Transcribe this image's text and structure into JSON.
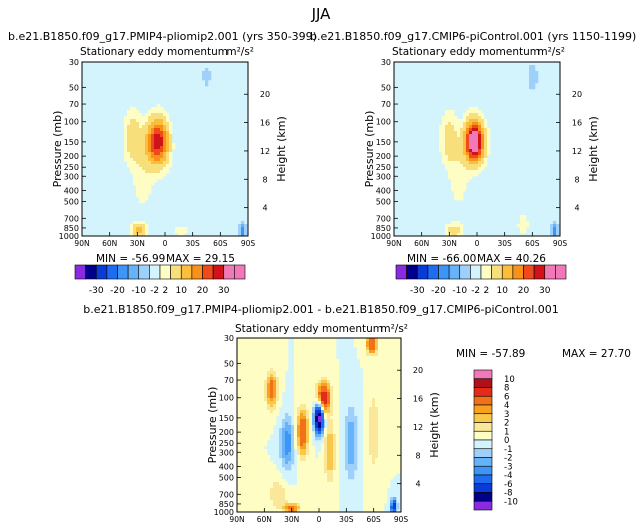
{
  "figure_title": "JJA",
  "colors": {
    "bg_field": "#d3f4fd",
    "contour_line": "#000000"
  },
  "chart_data": [
    {
      "type": "heatmap",
      "id": "panel_a",
      "case_title": "b.e21.B1850.f09_g17.PMIP4-pliomip2.001  (yrs 350-399)",
      "plot_title": "Stationary eddy momentum",
      "units": "m²/s²",
      "xlabel": "",
      "ylabel": "Pressure (mb)",
      "ylabel_right": "Height (km)",
      "x_ticks": [
        "90N",
        "60N",
        "30N",
        "0",
        "30S",
        "60S",
        "90S"
      ],
      "y_ticks": [
        "30",
        "50",
        "70",
        "100",
        "150",
        "200",
        "250",
        "300",
        "400",
        "500",
        "700",
        "850",
        "1000"
      ],
      "right_ticks": [
        "20",
        "16",
        "12",
        "8",
        "4"
      ],
      "min_text": "MIN = -56.99",
      "max_text": "MAX =  29.15",
      "features": [
        {
          "lat": 8,
          "p": 150,
          "value": 29,
          "spread_lat": 12,
          "spread_p": 0.45
        },
        {
          "lat": 35,
          "p": 140,
          "value": 9,
          "spread_lat": 9,
          "spread_p": 0.5
        },
        {
          "lat": 24,
          "p": 320,
          "value": 4,
          "spread_lat": 10,
          "spread_p": 0.6
        },
        {
          "lat": 28,
          "p": 900,
          "value": 12,
          "spread_lat": 8,
          "spread_p": 0.15
        },
        {
          "lat": -18,
          "p": 900,
          "value": 3,
          "spread_lat": 10,
          "spread_p": 0.15
        },
        {
          "lat": -10,
          "p": 120,
          "value": -2,
          "spread_lat": 7,
          "spread_p": 0.6
        },
        {
          "lat": -45,
          "p": 40,
          "value": -3,
          "spread_lat": 6,
          "spread_p": 0.3
        },
        {
          "lat": -25,
          "p": 350,
          "value": -2,
          "spread_lat": 6,
          "spread_p": 0.5
        },
        {
          "lat": -84,
          "p": 900,
          "value": -15,
          "spread_lat": 3,
          "spread_p": 0.15
        }
      ]
    },
    {
      "type": "heatmap",
      "id": "panel_b",
      "case_title": "b.e21.B1850.f09_g17.CMIP6-piControl.001  (yrs 1150-1199)",
      "plot_title": "Stationary eddy momentum",
      "units": "m²/s²",
      "xlabel": "",
      "ylabel": "Pressure (mb)",
      "ylabel_right": "Height (km)",
      "x_ticks": [
        "90N",
        "60N",
        "30N",
        "0",
        "30S",
        "60S",
        "90S"
      ],
      "y_ticks": [
        "30",
        "50",
        "70",
        "100",
        "150",
        "200",
        "250",
        "300",
        "400",
        "500",
        "700",
        "850",
        "1000"
      ],
      "right_ticks": [
        "20",
        "16",
        "12",
        "8",
        "4"
      ],
      "min_text": "MIN = -66.00",
      "max_text": "MAX =  40.26",
      "features": [
        {
          "lat": 3,
          "p": 150,
          "value": 40,
          "spread_lat": 10,
          "spread_p": 0.4
        },
        {
          "lat": 30,
          "p": 140,
          "value": 8,
          "spread_lat": 9,
          "spread_p": 0.5
        },
        {
          "lat": 20,
          "p": 300,
          "value": 4,
          "spread_lat": 10,
          "spread_p": 0.6
        },
        {
          "lat": 25,
          "p": 900,
          "value": 8,
          "spread_lat": 9,
          "spread_p": 0.15
        },
        {
          "lat": -20,
          "p": 150,
          "value": -2,
          "spread_lat": 5,
          "spread_p": 0.6
        },
        {
          "lat": -60,
          "p": 40,
          "value": -4,
          "spread_lat": 6,
          "spread_p": 0.3
        },
        {
          "lat": -45,
          "p": 200,
          "value": 2,
          "spread_lat": 8,
          "spread_p": 0.6
        },
        {
          "lat": -50,
          "p": 800,
          "value": 3,
          "spread_lat": 8,
          "spread_p": 0.3
        },
        {
          "lat": -84,
          "p": 900,
          "value": -15,
          "spread_lat": 3,
          "spread_p": 0.15
        }
      ]
    },
    {
      "type": "heatmap",
      "id": "panel_diff",
      "case_title": "b.e21.B1850.f09_g17.PMIP4-pliomip2.001  -  b.e21.B1850.f09_g17.CMIP6-piControl.001",
      "plot_title": "Stationary eddy momentum",
      "units": "m²/s²",
      "xlabel": "",
      "ylabel": "Pressure (mb)",
      "ylabel_right": "Height (km)",
      "x_ticks": [
        "90N",
        "60N",
        "30N",
        "0",
        "30S",
        "60S",
        "90S"
      ],
      "y_ticks": [
        "30",
        "50",
        "70",
        "100",
        "150",
        "200",
        "250",
        "300",
        "400",
        "500",
        "700",
        "850",
        "1000"
      ],
      "right_ticks": [
        "20",
        "16",
        "12",
        "8",
        "4"
      ],
      "min_text": "MIN = -57.89",
      "max_text": "MAX =  27.70",
      "features": [
        {
          "lat": 52,
          "p": 85,
          "value": 5,
          "spread_lat": 6,
          "spread_p": 0.35
        },
        {
          "lat": 35,
          "p": 250,
          "value": -4,
          "spread_lat": 7,
          "spread_p": 0.5
        },
        {
          "lat": 18,
          "p": 200,
          "value": 6,
          "spread_lat": 6,
          "spread_p": 0.45
        },
        {
          "lat": 0,
          "p": 150,
          "value": -12,
          "spread_lat": 5,
          "spread_p": 0.3
        },
        {
          "lat": -5,
          "p": 100,
          "value": 8,
          "spread_lat": 7,
          "spread_p": 0.3
        },
        {
          "lat": -12,
          "p": 300,
          "value": 3,
          "spread_lat": 6,
          "spread_p": 0.6
        },
        {
          "lat": -35,
          "p": 250,
          "value": -3,
          "spread_lat": 7,
          "spread_p": 0.7
        },
        {
          "lat": -58,
          "p": 34,
          "value": 6,
          "spread_lat": 6,
          "spread_p": 0.2
        },
        {
          "lat": -60,
          "p": 200,
          "value": 2,
          "spread_lat": 6,
          "spread_p": 0.8
        },
        {
          "lat": 45,
          "p": 700,
          "value": 2,
          "spread_lat": 10,
          "spread_p": 0.3
        },
        {
          "lat": 30,
          "p": 930,
          "value": 5,
          "spread_lat": 8,
          "spread_p": 0.1
        },
        {
          "lat": -82,
          "p": 900,
          "value": -8,
          "spread_lat": 3,
          "spread_p": 0.15
        }
      ]
    }
  ],
  "colorbar_top": {
    "labels": [
      "-30",
      "-20",
      "-10",
      "-2",
      "2",
      "10",
      "20",
      "30"
    ],
    "levels": [
      -60,
      -30,
      -25,
      -20,
      -15,
      -10,
      -5,
      -2,
      2,
      5,
      10,
      15,
      20,
      25,
      30,
      60
    ],
    "colors": [
      "#8a2be2",
      "#00008b",
      "#0a3bd6",
      "#1e6cf0",
      "#3d95f5",
      "#66b3f7",
      "#9fd0fb",
      "#d3f4fd",
      "#fdfdc4",
      "#f7e07c",
      "#fbbd3a",
      "#f8901a",
      "#ee4a1c",
      "#d0131a",
      "#f279b8",
      "#f279b8"
    ]
  },
  "colorbar_diff": {
    "labels": [
      "10",
      "8",
      "6",
      "4",
      "3",
      "2",
      "1",
      "0",
      "-1",
      "-2",
      "-3",
      "-4",
      "-6",
      "-8",
      "-10"
    ],
    "levels": [
      -40,
      -10,
      -8,
      -6,
      -4,
      -3,
      -2,
      -1,
      0,
      1,
      2,
      3,
      4,
      6,
      8,
      10,
      40
    ],
    "colors": [
      "#8a2be2",
      "#00008b",
      "#0a3bd6",
      "#1e6cf0",
      "#3d95f5",
      "#66b3f7",
      "#9fd0fb",
      "#d3f4fd",
      "#fdfdc4",
      "#fbe79a",
      "#f8c84a",
      "#f6a21e",
      "#f2701a",
      "#e62a1a",
      "#b0101a",
      "#f279b8"
    ]
  }
}
